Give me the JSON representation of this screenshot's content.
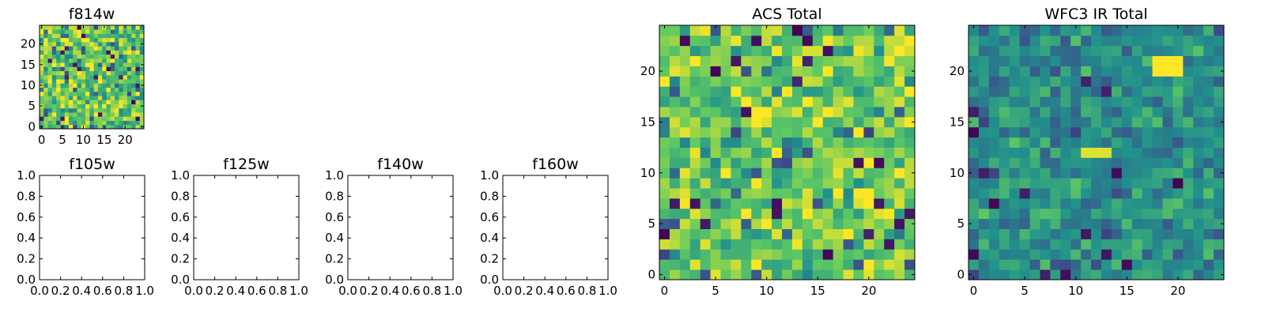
{
  "figure": {
    "background": "#ffffff",
    "colormap": [
      "#440154",
      "#3b528b",
      "#21918c",
      "#5ec962",
      "#fde725"
    ]
  },
  "chart_data": [
    {
      "type": "heatmap",
      "title": "f814w",
      "xlim": [
        -0.5,
        24.5
      ],
      "ylim": [
        -0.5,
        24.5
      ],
      "xticks": [
        0,
        5,
        10,
        15,
        20
      ],
      "yticks": [
        0,
        5,
        10,
        15,
        20
      ],
      "xtick_labels": [
        "0",
        "5",
        "10",
        "15",
        "20"
      ],
      "ytick_labels": [
        "0",
        "5",
        "10",
        "15",
        "20"
      ],
      "grid_size": [
        25,
        25
      ],
      "value_range": [
        0,
        1
      ],
      "seed": 11,
      "level": 0.74,
      "spread": 0.2,
      "outlier_rate": 0.03,
      "blocks": []
    },
    {
      "type": "empty",
      "title": "f105w",
      "xlim": [
        0,
        1
      ],
      "ylim": [
        0,
        1
      ],
      "xticks": [
        0,
        0.2,
        0.4,
        0.6,
        0.8,
        1.0
      ],
      "yticks": [
        0,
        0.2,
        0.4,
        0.6,
        0.8,
        1.0
      ],
      "xtick_labels": [
        "0.0",
        "0.2",
        "0.4",
        "0.6",
        "0.8",
        "1.0"
      ],
      "ytick_labels": [
        "0.0",
        "0.2",
        "0.4",
        "0.6",
        "0.8",
        "1.0"
      ]
    },
    {
      "type": "empty",
      "title": "f125w",
      "xlim": [
        0,
        1
      ],
      "ylim": [
        0,
        1
      ],
      "xticks": [
        0,
        0.2,
        0.4,
        0.6,
        0.8,
        1.0
      ],
      "yticks": [
        0,
        0.2,
        0.4,
        0.6,
        0.8,
        1.0
      ],
      "xtick_labels": [
        "0.0",
        "0.2",
        "0.4",
        "0.6",
        "0.8",
        "1.0"
      ],
      "ytick_labels": [
        "0.0",
        "0.2",
        "0.4",
        "0.6",
        "0.8",
        "1.0"
      ]
    },
    {
      "type": "empty",
      "title": "f140w",
      "xlim": [
        0,
        1
      ],
      "ylim": [
        0,
        1
      ],
      "xticks": [
        0,
        0.2,
        0.4,
        0.6,
        0.8,
        1.0
      ],
      "yticks": [
        0,
        0.2,
        0.4,
        0.6,
        0.8,
        1.0
      ],
      "xtick_labels": [
        "0.0",
        "0.2",
        "0.4",
        "0.6",
        "0.8",
        "1.0"
      ],
      "ytick_labels": [
        "0.0",
        "0.2",
        "0.4",
        "0.6",
        "0.8",
        "1.0"
      ]
    },
    {
      "type": "empty",
      "title": "f160w",
      "xlim": [
        0,
        1
      ],
      "ylim": [
        0,
        1
      ],
      "xticks": [
        0,
        0.2,
        0.4,
        0.6,
        0.8,
        1.0
      ],
      "yticks": [
        0,
        0.2,
        0.4,
        0.6,
        0.8,
        1.0
      ],
      "xtick_labels": [
        "0.0",
        "0.2",
        "0.4",
        "0.6",
        "0.8",
        "1.0"
      ],
      "ytick_labels": [
        "0.0",
        "0.2",
        "0.4",
        "0.6",
        "0.8",
        "1.0"
      ]
    },
    {
      "type": "heatmap",
      "title": "ACS Total",
      "xlim": [
        -0.5,
        24.5
      ],
      "ylim": [
        -0.5,
        24.5
      ],
      "xticks": [
        0,
        5,
        10,
        15,
        20
      ],
      "yticks": [
        0,
        5,
        10,
        15,
        20
      ],
      "xtick_labels": [
        "0",
        "5",
        "10",
        "15",
        "20"
      ],
      "ytick_labels": [
        "0",
        "5",
        "10",
        "15",
        "20"
      ],
      "grid_size": [
        25,
        25
      ],
      "value_range": [
        0,
        1
      ],
      "seed": 23,
      "level": 0.76,
      "spread": 0.18,
      "outlier_rate": 0.035,
      "blocks": []
    },
    {
      "type": "heatmap",
      "title": "WFC3 IR Total",
      "xlim": [
        -0.5,
        24.5
      ],
      "ylim": [
        -0.5,
        24.5
      ],
      "xticks": [
        0,
        5,
        10,
        15,
        20
      ],
      "yticks": [
        0,
        5,
        10,
        15,
        20
      ],
      "xtick_labels": [
        "0",
        "5",
        "10",
        "15",
        "20"
      ],
      "ytick_labels": [
        "0",
        "5",
        "10",
        "15",
        "20"
      ],
      "grid_size": [
        25,
        25
      ],
      "value_range": [
        0,
        1
      ],
      "seed": 37,
      "level": 0.5,
      "spread": 0.12,
      "outlier_rate": 0.03,
      "blocks": [
        {
          "cols": [
            18,
            20
          ],
          "rows": [
            20,
            21
          ],
          "value": 1.0
        },
        {
          "cols": [
            11,
            13
          ],
          "rows": [
            12,
            12
          ],
          "value": 0.95
        }
      ]
    }
  ]
}
